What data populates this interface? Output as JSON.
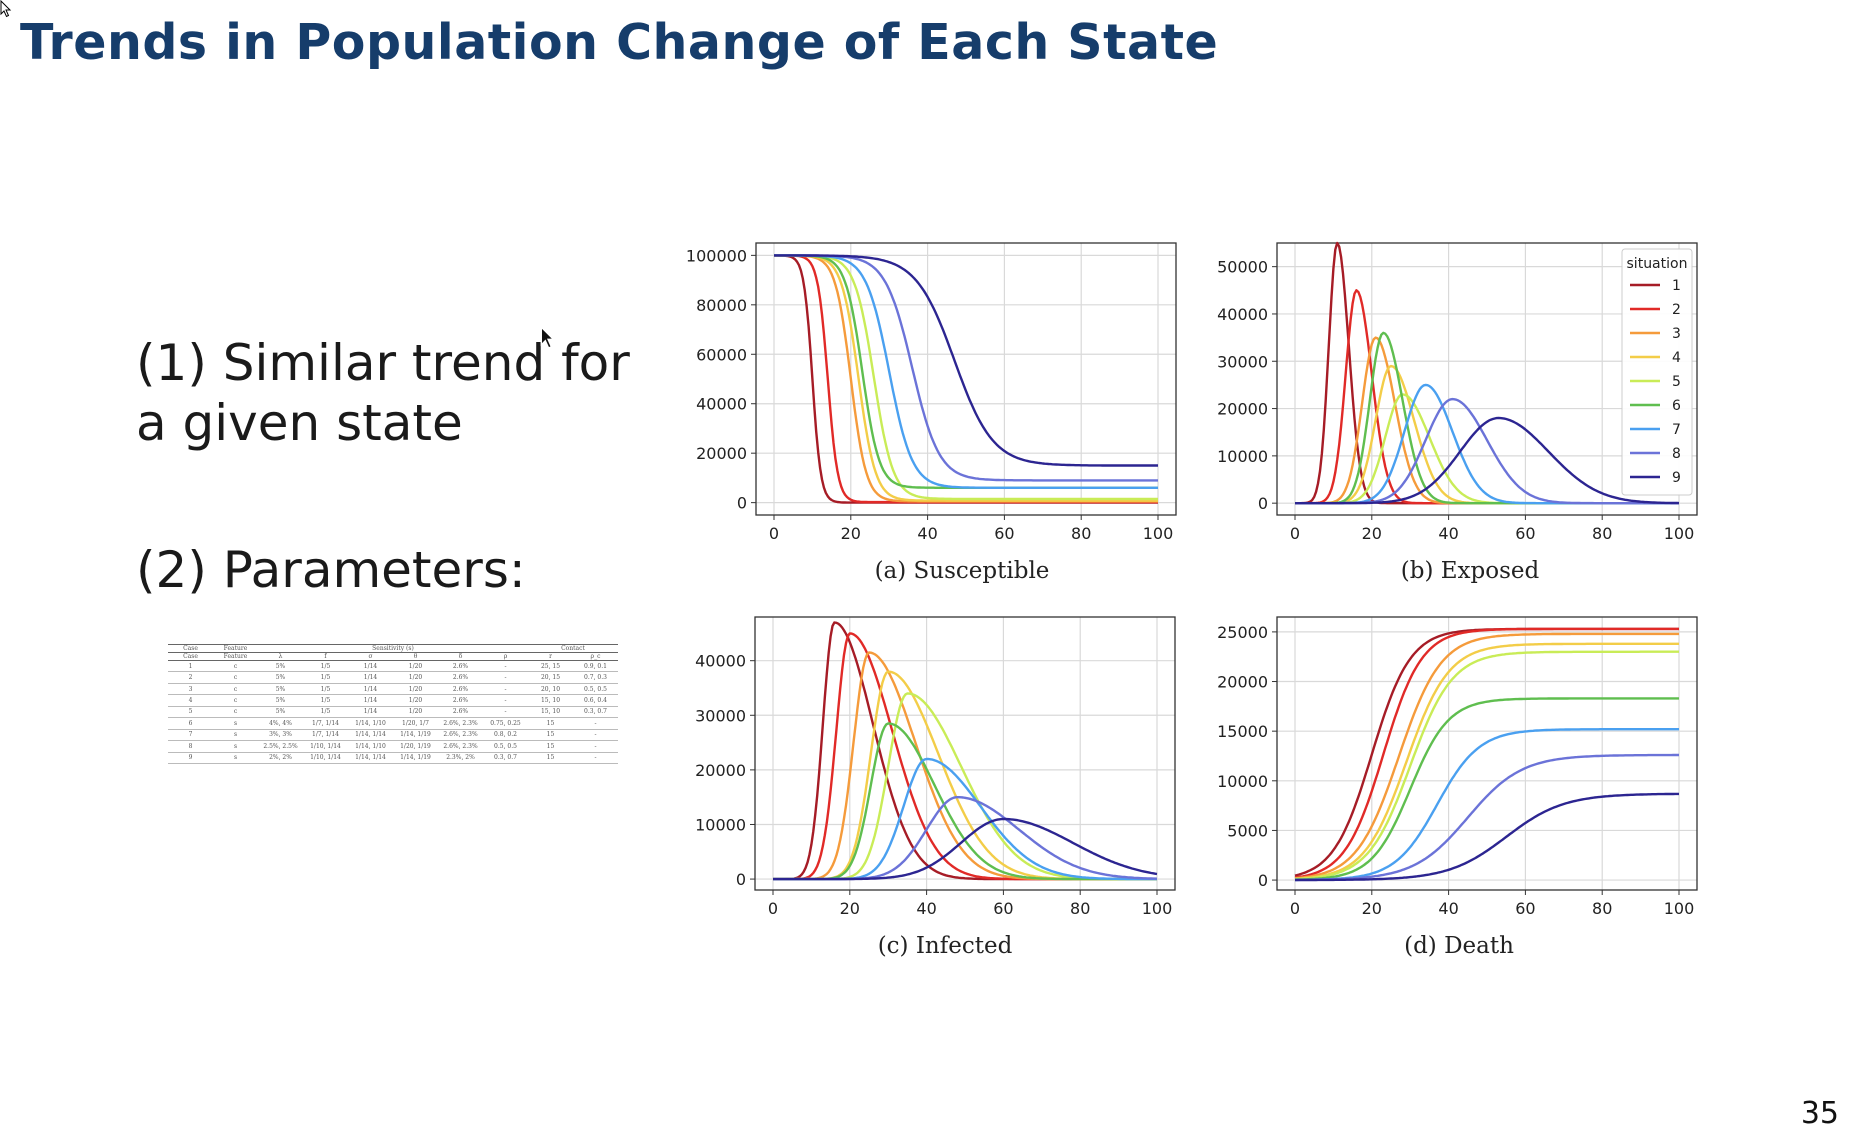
{
  "slide": {
    "title": "Trends in Population Change of Each State",
    "bullets": [
      "(1) Similar trend for a given state",
      "(2) Parameters:"
    ],
    "page_number": "35"
  },
  "parameter_table": {
    "super_headers": [
      "Case",
      "Feature",
      "Sensitivity (s)",
      "Contact"
    ],
    "columns": [
      "Case",
      "Feature",
      "λ",
      "f",
      "σ",
      "θ",
      "δ",
      "ρ",
      "r",
      "ρ_c"
    ],
    "rows": [
      [
        "1",
        "c",
        "5%",
        "1/5",
        "1/14",
        "1/20",
        "2.6%",
        "-",
        "25, 15",
        "0.9, 0.1"
      ],
      [
        "2",
        "c",
        "5%",
        "1/5",
        "1/14",
        "1/20",
        "2.6%",
        "-",
        "20, 15",
        "0.7, 0.3"
      ],
      [
        "3",
        "c",
        "5%",
        "1/5",
        "1/14",
        "1/20",
        "2.6%",
        "-",
        "20, 10",
        "0.5, 0.5"
      ],
      [
        "4",
        "c",
        "5%",
        "1/5",
        "1/14",
        "1/20",
        "2.6%",
        "-",
        "15, 10",
        "0.6, 0.4"
      ],
      [
        "5",
        "c",
        "5%",
        "1/5",
        "1/14",
        "1/20",
        "2.6%",
        "-",
        "15, 10",
        "0.3, 0.7"
      ],
      [
        "6",
        "s",
        "4%, 4%",
        "1/7, 1/14",
        "1/14, 1/10",
        "1/20, 1/7",
        "2.6%, 2.3%",
        "0.75, 0.25",
        "15",
        "-"
      ],
      [
        "7",
        "s",
        "3%, 3%",
        "1/7, 1/14",
        "1/14, 1/14",
        "1/14, 1/19",
        "2.6%, 2.3%",
        "0.8, 0.2",
        "15",
        "-"
      ],
      [
        "8",
        "s",
        "2.5%, 2.5%",
        "1/10, 1/14",
        "1/14, 1/10",
        "1/20, 1/19",
        "2.6%, 2.3%",
        "0.5, 0.5",
        "15",
        "-"
      ],
      [
        "9",
        "s",
        "2%, 2%",
        "1/10, 1/14",
        "1/14, 1/14",
        "1/14, 1/19",
        "2.3%, 2%",
        "0.3, 0.7",
        "15",
        "-"
      ]
    ]
  },
  "series_colors": [
    "#a61c26",
    "#e12a27",
    "#f59b3b",
    "#f3cd48",
    "#c9ec57",
    "#5fbe4f",
    "#4aa0f0",
    "#6b73d8",
    "#2c2591"
  ],
  "chart_data": [
    {
      "type": "line",
      "caption": "(a) Susceptible",
      "xlim": [
        0,
        100
      ],
      "ylim": [
        -5000,
        105000
      ],
      "xticks": [
        0,
        20,
        40,
        60,
        80,
        100
      ],
      "yticks": [
        0,
        20000,
        40000,
        60000,
        80000,
        100000
      ],
      "grid": true,
      "model": {
        "kind": "sigmoid-down",
        "start": 100000
      },
      "series": [
        {
          "name": "1",
          "midpoint": 10,
          "width": 1.1,
          "final": 0
        },
        {
          "name": "2",
          "midpoint": 14,
          "width": 1.3,
          "final": 200
        },
        {
          "name": "3",
          "midpoint": 20,
          "width": 2.0,
          "final": 500
        },
        {
          "name": "4",
          "midpoint": 22,
          "width": 2.2,
          "final": 800
        },
        {
          "name": "5",
          "midpoint": 26,
          "width": 2.5,
          "final": 1500
        },
        {
          "name": "6",
          "midpoint": 23,
          "width": 2.2,
          "final": 6000
        },
        {
          "name": "7",
          "midpoint": 30,
          "width": 3.0,
          "final": 6000
        },
        {
          "name": "8",
          "midpoint": 36,
          "width": 3.5,
          "final": 9000
        },
        {
          "name": "9",
          "midpoint": 47,
          "width": 5.0,
          "final": 15000
        }
      ]
    },
    {
      "type": "line",
      "caption": "(b) Exposed",
      "xlim": [
        0,
        100
      ],
      "ylim": [
        -2500,
        55000
      ],
      "xticks": [
        0,
        20,
        40,
        60,
        80,
        100
      ],
      "yticks": [
        0,
        10000,
        20000,
        30000,
        40000,
        50000
      ],
      "grid": true,
      "model": {
        "kind": "peak"
      },
      "legend": {
        "title": "situation",
        "position": "top-right"
      },
      "series": [
        {
          "name": "1",
          "peak_x": 11,
          "peak_y": 55000,
          "rise": 2.2,
          "fall": 3.0
        },
        {
          "name": "2",
          "peak_x": 16,
          "peak_y": 45000,
          "rise": 2.8,
          "fall": 4.0
        },
        {
          "name": "3",
          "peak_x": 21,
          "peak_y": 35000,
          "rise": 3.5,
          "fall": 5.0
        },
        {
          "name": "4",
          "peak_x": 25,
          "peak_y": 29000,
          "rise": 4.0,
          "fall": 6.0
        },
        {
          "name": "5",
          "peak_x": 28,
          "peak_y": 23000,
          "rise": 4.5,
          "fall": 7.0
        },
        {
          "name": "6",
          "peak_x": 23,
          "peak_y": 36000,
          "rise": 3.5,
          "fall": 5.0
        },
        {
          "name": "7",
          "peak_x": 34,
          "peak_y": 25000,
          "rise": 5.5,
          "fall": 7.0
        },
        {
          "name": "8",
          "peak_x": 41,
          "peak_y": 22000,
          "rise": 7.0,
          "fall": 9.0
        },
        {
          "name": "9",
          "peak_x": 53,
          "peak_y": 18000,
          "rise": 10.0,
          "fall": 13.0
        }
      ]
    },
    {
      "type": "line",
      "caption": "(c) Infected",
      "xlim": [
        0,
        100
      ],
      "ylim": [
        -2000,
        48000
      ],
      "xticks": [
        0,
        20,
        40,
        60,
        80,
        100
      ],
      "yticks": [
        0,
        10000,
        20000,
        30000,
        40000
      ],
      "grid": true,
      "model": {
        "kind": "peak"
      },
      "series": [
        {
          "name": "1",
          "peak_x": 16,
          "peak_y": 47000,
          "rise": 3.0,
          "fall": 10.0
        },
        {
          "name": "2",
          "peak_x": 20,
          "peak_y": 45000,
          "rise": 3.5,
          "fall": 11.0
        },
        {
          "name": "3",
          "peak_x": 25,
          "peak_y": 41500,
          "rise": 4.0,
          "fall": 12.0
        },
        {
          "name": "4",
          "peak_x": 30,
          "peak_y": 38000,
          "rise": 4.5,
          "fall": 13.0
        },
        {
          "name": "5",
          "peak_x": 35,
          "peak_y": 34000,
          "rise": 5.0,
          "fall": 14.0
        },
        {
          "name": "6",
          "peak_x": 30,
          "peak_y": 28500,
          "rise": 4.5,
          "fall": 12.0
        },
        {
          "name": "7",
          "peak_x": 40,
          "peak_y": 22000,
          "rise": 6.0,
          "fall": 14.0
        },
        {
          "name": "8",
          "peak_x": 48,
          "peak_y": 15000,
          "rise": 8.0,
          "fall": 16.0
        },
        {
          "name": "9",
          "peak_x": 60,
          "peak_y": 11000,
          "rise": 11.0,
          "fall": 18.0
        }
      ]
    },
    {
      "type": "line",
      "caption": "(d) Death",
      "xlim": [
        0,
        100
      ],
      "ylim": [
        -1000,
        26500
      ],
      "xticks": [
        0,
        20,
        40,
        60,
        80,
        100
      ],
      "yticks": [
        0,
        5000,
        10000,
        15000,
        20000,
        25000
      ],
      "grid": true,
      "model": {
        "kind": "sigmoid-up",
        "start": 0
      },
      "series": [
        {
          "name": "1",
          "midpoint": 20,
          "width": 5.0,
          "final": 25300
        },
        {
          "name": "2",
          "midpoint": 23,
          "width": 5.0,
          "final": 25300
        },
        {
          "name": "3",
          "midpoint": 27,
          "width": 5.5,
          "final": 24800
        },
        {
          "name": "4",
          "midpoint": 29,
          "width": 5.5,
          "final": 23800
        },
        {
          "name": "5",
          "midpoint": 30,
          "width": 5.5,
          "final": 23000
        },
        {
          "name": "6",
          "midpoint": 30,
          "width": 5.0,
          "final": 18300
        },
        {
          "name": "7",
          "midpoint": 37,
          "width": 5.5,
          "final": 15200
        },
        {
          "name": "8",
          "midpoint": 45,
          "width": 7.0,
          "final": 12600
        },
        {
          "name": "9",
          "midpoint": 55,
          "width": 7.5,
          "final": 8700
        }
      ]
    }
  ]
}
